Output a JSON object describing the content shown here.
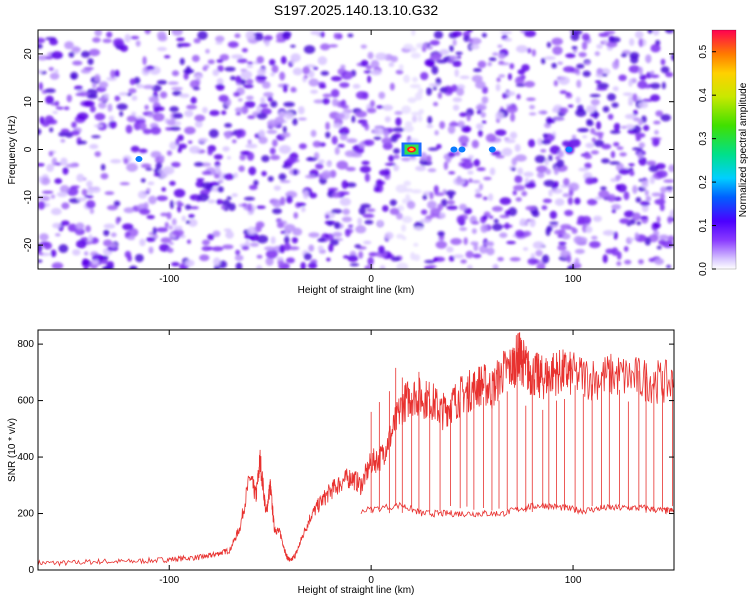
{
  "chart_data": [
    {
      "type": "heatmap",
      "title": "S197.2025.140.13.10.G32",
      "xlabel": "Height of straight line (km)",
      "ylabel": "Frequency (Hz)",
      "xlim": [
        -165,
        150
      ],
      "ylim": [
        -25,
        25
      ],
      "xticks": [
        -100,
        0,
        100
      ],
      "xtick_labels": [
        "-100",
        "0",
        "100"
      ],
      "yticks": [
        -20,
        -10,
        0,
        10,
        20
      ],
      "ytick_labels": [
        "-20",
        "-10",
        "0",
        "10",
        "20"
      ],
      "colorbar": {
        "label": "Normalized spectral amplitude",
        "range": [
          0,
          0.55
        ],
        "ticks": [
          0,
          0.1,
          0.2,
          0.3,
          0.4,
          0.5
        ],
        "tick_labels": [
          "0.0",
          "0.1",
          "0.2",
          "0.3",
          "0.4",
          "0.5"
        ]
      },
      "features": [
        {
          "x": 20,
          "y": 0,
          "amplitude": 0.55,
          "note": "strong peak"
        },
        {
          "x": 41,
          "y": 0,
          "amplitude": 0.12
        },
        {
          "x": 45,
          "y": 0,
          "amplitude": 0.12
        },
        {
          "x": 60,
          "y": 0,
          "amplitude": 0.1
        },
        {
          "x": -115,
          "y": -2,
          "amplitude": 0.1
        },
        {
          "x": 98,
          "y": 0,
          "amplitude": 0.1
        }
      ],
      "background_amplitude": [
        0.02,
        0.08
      ],
      "grid": false
    },
    {
      "type": "line",
      "xlabel": "Height of straight line (km)",
      "ylabel": "SNR (10 * v/v)",
      "xlim": [
        -165,
        150
      ],
      "ylim": [
        0,
        850
      ],
      "xticks": [
        -100,
        0,
        100
      ],
      "xtick_labels": [
        "-100",
        "0",
        "100"
      ],
      "yticks": [
        0,
        200,
        400,
        600,
        800
      ],
      "ytick_labels": [
        "0",
        "200",
        "400",
        "600",
        "800"
      ],
      "series": [
        {
          "color": "#e8312f",
          "x": [
            -165,
            -150,
            -135,
            -120,
            -105,
            -95,
            -85,
            -80,
            -75,
            -70,
            -65,
            -60,
            -57,
            -55,
            -52,
            -50,
            -48,
            -45,
            -42,
            -40,
            -37,
            -34,
            -30,
            -25,
            -20,
            -15,
            -10,
            -5,
            0,
            5,
            10,
            15,
            20,
            25,
            30,
            35,
            40,
            45,
            50,
            55,
            60,
            65,
            70,
            73,
            75,
            78,
            82,
            85,
            90,
            95,
            100,
            110,
            120,
            130,
            140,
            150
          ],
          "values": [
            25,
            25,
            30,
            30,
            35,
            40,
            45,
            50,
            60,
            70,
            150,
            330,
            260,
            390,
            200,
            300,
            150,
            130,
            50,
            30,
            60,
            120,
            190,
            240,
            280,
            310,
            330,
            300,
            380,
            400,
            480,
            580,
            620,
            610,
            600,
            560,
            590,
            620,
            640,
            660,
            640,
            700,
            720,
            760,
            740,
            700,
            690,
            680,
            700,
            700,
            690,
            680,
            690,
            680,
            670,
            660
          ]
        },
        {
          "color": "#e8312f",
          "x": [
            -5,
            15,
            25,
            35,
            45,
            55,
            65,
            75,
            85,
            95,
            105,
            115,
            125,
            135,
            145,
            150
          ],
          "values": [
            210,
            230,
            200,
            200,
            200,
            200,
            200,
            220,
            230,
            220,
            210,
            220,
            220,
            220,
            210,
            210
          ]
        }
      ],
      "grid": false
    }
  ]
}
